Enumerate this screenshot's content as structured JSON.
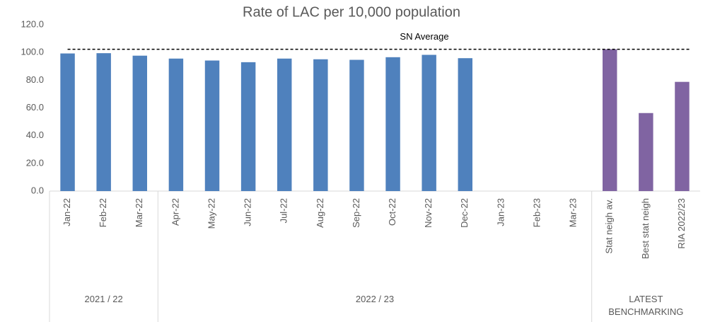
{
  "chart_data": {
    "type": "bar",
    "title": "Rate of LAC per 10,000 population",
    "categories": [
      "Jan-22",
      "Feb-22",
      "Mar-22",
      "Apr-22",
      "May-22",
      "Jun-22",
      "Jul-22",
      "Aug-22",
      "Sep-22",
      "Oct-22",
      "Nov-22",
      "Dec-22",
      "Jan-23",
      "Feb-23",
      "Mar-23",
      "Stat neigh av.",
      "Best stat neigh",
      "RIA 2022/23"
    ],
    "values": [
      99.3,
      99.5,
      97.7,
      95.6,
      94.2,
      93.0,
      95.6,
      95.1,
      94.7,
      96.6,
      98.3,
      95.9,
      null,
      null,
      null,
      102.3,
      56.3,
      78.8
    ],
    "colors": [
      "#4f81bd",
      "#4f81bd",
      "#4f81bd",
      "#4f81bd",
      "#4f81bd",
      "#4f81bd",
      "#4f81bd",
      "#4f81bd",
      "#4f81bd",
      "#4f81bd",
      "#4f81bd",
      "#4f81bd",
      "#4f81bd",
      "#4f81bd",
      "#4f81bd",
      "#8064a2",
      "#8064a2",
      "#8064a2"
    ],
    "groups": [
      {
        "name": "2021 / 22",
        "count": 3
      },
      {
        "name": "2022 / 23",
        "count": 12
      },
      {
        "name": "LATEST BENCHMARKING",
        "count": 3
      }
    ],
    "reference_line": {
      "label": "SN Average",
      "value": 102.3
    },
    "ylim": [
      0,
      120
    ],
    "yticks": [
      {
        "value": 0,
        "label": "0.0"
      },
      {
        "value": 20,
        "label": "20.0"
      },
      {
        "value": 40,
        "label": "40.0"
      },
      {
        "value": 60,
        "label": "60.0"
      },
      {
        "value": 80,
        "label": "80.0"
      },
      {
        "value": 100,
        "label": "100.0"
      },
      {
        "value": 120,
        "label": "120.0"
      }
    ],
    "grid": false
  }
}
